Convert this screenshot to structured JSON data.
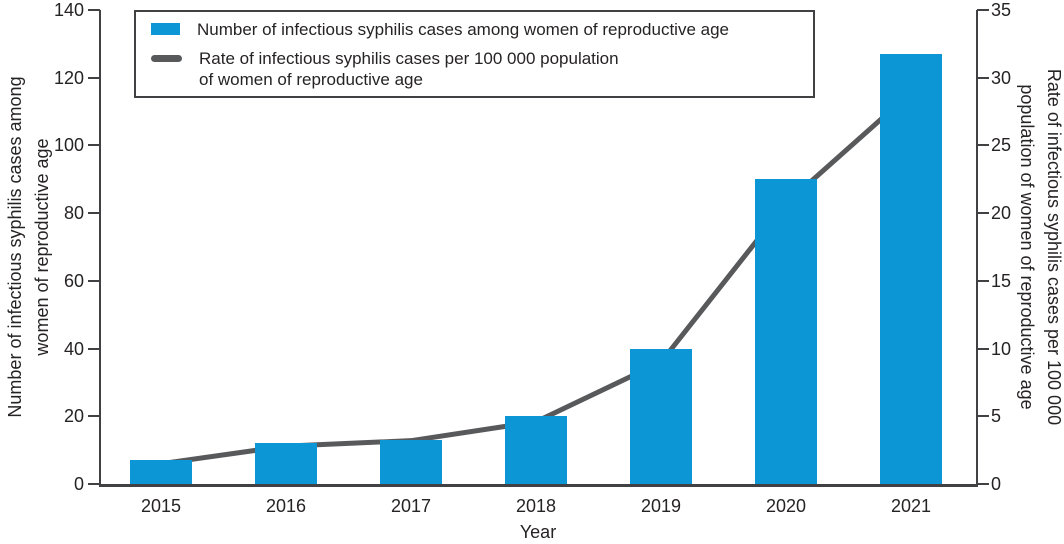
{
  "legend": {
    "items": [
      {
        "swatch": "bar-swatch",
        "label": "Number of infectious syphilis cases among women of reproductive age"
      },
      {
        "swatch": "line-swatch",
        "label_line1": "Rate of infectious syphilis cases per 100 000 population",
        "label_line2": "of women of reproductive age"
      }
    ]
  },
  "left_axis_title": {
    "line1": "Number of infectious syphilis cases among",
    "line2": "women of reproductive age"
  },
  "right_axis_title": {
    "line1": "Rate of infectious syphilis cases per 100 000",
    "line2": "population of women of reproductive age"
  },
  "chart_data": {
    "type": "bar+line",
    "categories": [
      "2015",
      "2016",
      "2017",
      "2018",
      "2019",
      "2020",
      "2021"
    ],
    "series": [
      {
        "name": "Number of infectious syphilis cases among women of reproductive age",
        "type": "bar",
        "axis": "left",
        "values": [
          7,
          12,
          13,
          20,
          40,
          90,
          127
        ]
      },
      {
        "name": "Rate of infectious syphilis cases per 100 000 population of women of reproductive age",
        "type": "line",
        "axis": "right",
        "values": [
          1.5,
          2.8,
          3.2,
          4.6,
          9.0,
          20.7,
          28.9
        ]
      }
    ],
    "left_axis": {
      "label": "Number of infectious syphilis cases among women of reproductive age",
      "ticks": [
        0,
        20,
        40,
        60,
        80,
        100,
        120,
        140
      ],
      "range": [
        0,
        140
      ]
    },
    "right_axis": {
      "label": "Rate of infectious syphilis cases per 100 000 population of women of reproductive age",
      "ticks": [
        0,
        5,
        10,
        15,
        20,
        25,
        30,
        35
      ],
      "range": [
        0,
        35
      ]
    },
    "xlabel": "Year",
    "grid": false,
    "legend_position": "top-left",
    "colors": {
      "bar": "#0c96d6",
      "line": "#58595b",
      "axis": "#414042",
      "text": "#262324"
    }
  }
}
